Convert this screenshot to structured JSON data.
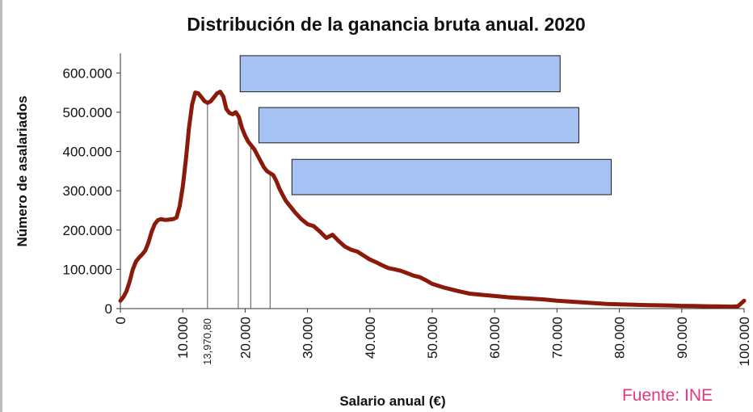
{
  "chart_data": {
    "type": "line",
    "title": "Distribución de la ganancia bruta anual. 2020",
    "xlabel": "Salario anual (€)",
    "ylabel": "Número de asalariados",
    "xlim": [
      0,
      100000
    ],
    "ylim": [
      0,
      650000
    ],
    "yticks": [
      0,
      100000,
      200000,
      300000,
      400000,
      500000,
      600000
    ],
    "ytick_labels": [
      "0",
      "100.000",
      "200.000",
      "300.000",
      "400.000",
      "500.000",
      "600.000"
    ],
    "xticks": [
      0,
      10000,
      20000,
      30000,
      40000,
      50000,
      60000,
      70000,
      80000,
      90000,
      100000
    ],
    "xtick_labels": [
      "0",
      "10.000",
      "20.000",
      "30.000",
      "40.000",
      "50.000",
      "60.000",
      "70.000",
      "80.000",
      "90.000",
      "100.000"
    ],
    "highlight_label": "13,970,80",
    "series": [
      {
        "color": "#8b1a0a",
        "x": [
          0,
          500,
          1000,
          1500,
          2000,
          2500,
          3000,
          3500,
          4000,
          4500,
          5000,
          5500,
          6000,
          6500,
          7000,
          7500,
          8000,
          8500,
          9000,
          9500,
          10000,
          10500,
          11000,
          11500,
          12000,
          12500,
          13000,
          13500,
          14000,
          14500,
          15000,
          15500,
          16000,
          16500,
          17000,
          17500,
          18000,
          18500,
          19000,
          19500,
          20000,
          20500,
          21000,
          21500,
          22000,
          22500,
          23000,
          23500,
          24000,
          24500,
          25000,
          25500,
          26000,
          26500,
          27000,
          27500,
          28000,
          29000,
          30000,
          31000,
          32000,
          33000,
          34000,
          35000,
          36000,
          37000,
          38000,
          39000,
          40000,
          41000,
          42000,
          43000,
          44000,
          45000,
          46000,
          47000,
          48000,
          49000,
          50000,
          52000,
          54000,
          56000,
          58000,
          60000,
          62000,
          64000,
          66000,
          68000,
          70000,
          72000,
          74000,
          76000,
          78000,
          80000,
          82000,
          84000,
          86000,
          88000,
          90000,
          92000,
          94000,
          96000,
          98000,
          99000,
          100000
        ],
        "values": [
          20000,
          30000,
          45000,
          70000,
          100000,
          120000,
          130000,
          138000,
          148000,
          168000,
          195000,
          215000,
          225000,
          228000,
          226000,
          226000,
          227000,
          228000,
          232000,
          260000,
          310000,
          380000,
          460000,
          520000,
          550000,
          548000,
          538000,
          528000,
          524000,
          528000,
          538000,
          548000,
          552000,
          540000,
          508000,
          498000,
          495000,
          500000,
          488000,
          460000,
          440000,
          425000,
          415000,
          405000,
          390000,
          375000,
          360000,
          350000,
          345000,
          340000,
          325000,
          305000,
          290000,
          275000,
          265000,
          255000,
          245000,
          228000,
          215000,
          210000,
          196000,
          180000,
          188000,
          172000,
          158000,
          150000,
          145000,
          135000,
          125000,
          118000,
          110000,
          103000,
          100000,
          96000,
          90000,
          84000,
          80000,
          72000,
          63000,
          53000,
          45000,
          38000,
          35000,
          32000,
          29000,
          27000,
          25000,
          23000,
          20000,
          18000,
          16000,
          14000,
          12000,
          11000,
          10000,
          9000,
          8500,
          8000,
          7000,
          6500,
          6000,
          5500,
          5000,
          6000,
          20000
        ]
      }
    ],
    "marker_lines_x": [
      13970,
      18900,
      20900,
      24000
    ],
    "annotation_boxes": [
      {
        "x0": 19200,
        "x1": 70500,
        "y0": 552000,
        "y1": 644000,
        "fill": "#a6c3f3",
        "stroke": "#1a1a1a"
      },
      {
        "x0": 22200,
        "x1": 73500,
        "y0": 422000,
        "y1": 512000,
        "fill": "#a6c3f3",
        "stroke": "#1a1a1a"
      },
      {
        "x0": 27500,
        "x1": 78700,
        "y0": 290000,
        "y1": 380000,
        "fill": "#a6c3f3",
        "stroke": "#1a1a1a"
      }
    ],
    "source": "Fuente: INE",
    "grid": false
  }
}
